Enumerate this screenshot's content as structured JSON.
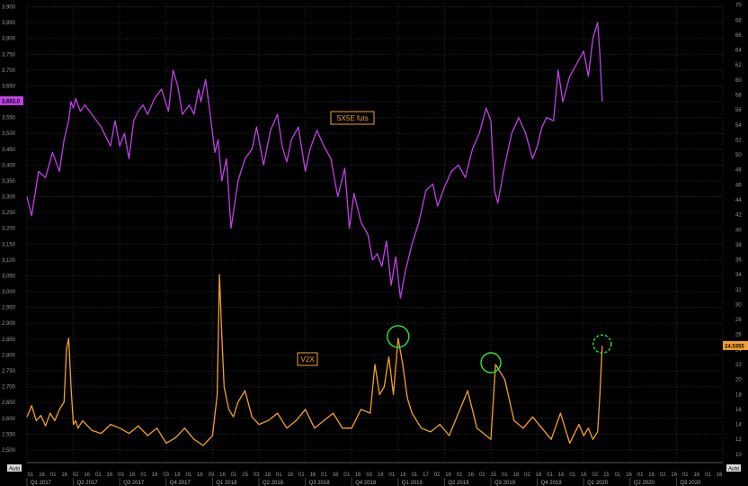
{
  "chart_data": {
    "type": "line",
    "corner_left": "Auto",
    "corner_right": "Auto",
    "quarters": [
      "Q1 2017",
      "Q2 2017",
      "Q3 2017",
      "Q4 2017",
      "Q1 2018",
      "Q2 2018",
      "Q3 2018",
      "Q4 2018",
      "Q1 2019",
      "Q2 2019",
      "Q3 2019",
      "Q4 2019",
      "Q1 2020",
      "Q2 2020",
      "Q3 2020"
    ],
    "day_ticks": [
      "01",
      "16",
      "01",
      "16",
      "02",
      "16",
      "01",
      "16",
      "03",
      "16",
      "01",
      "16",
      "03",
      "18",
      "01",
      "16",
      "03",
      "16",
      "01",
      "15",
      "03",
      "18",
      "01",
      "16",
      "01",
      "16",
      "01",
      "16",
      "01",
      "16",
      "03",
      "18",
      "01",
      "16",
      "01",
      "17",
      "02",
      "16",
      "01",
      "16",
      "01",
      "15",
      "01",
      "18",
      "02",
      "16",
      "01",
      "16",
      "01",
      "16",
      "02",
      "15",
      "01",
      "16",
      "01",
      "16",
      "02",
      "16",
      "01",
      "16",
      "01",
      "16"
    ],
    "left_axis": {
      "range": [
        2460,
        3910
      ],
      "ticks": [
        2500,
        2550,
        2600,
        2650,
        2700,
        2750,
        2800,
        2850,
        2900,
        2950,
        3000,
        3050,
        3100,
        3150,
        3200,
        3250,
        3300,
        3350,
        3400,
        3450,
        3500,
        3550,
        3600,
        3650,
        3700,
        3750,
        3800,
        3850,
        3900
      ],
      "tick_labels": [
        "2,500",
        "2,550",
        "2,600",
        "2,650",
        "2,700",
        "2,750",
        "2,800",
        "2,850",
        "2,900",
        "2,950",
        "3,000",
        "3,050",
        "3,100",
        "3,150",
        "3,200",
        "3,250",
        "3,300",
        "3,350",
        "3,400",
        "3,450",
        "3,500",
        "3,550",
        "3,600",
        "3,650",
        "3,700",
        "3,750",
        "3,800",
        "3,850",
        "3,900"
      ]
    },
    "right_axis": {
      "range": [
        8.9,
        70.2
      ],
      "ticks": [
        10,
        12,
        14,
        16,
        18,
        20,
        22,
        24,
        26,
        28,
        30,
        32,
        34,
        36,
        38,
        40,
        42,
        44,
        46,
        48,
        50,
        52,
        54,
        56,
        58,
        60,
        62,
        64,
        66,
        68,
        70
      ],
      "tick_labels": [
        "10",
        "12",
        "14",
        "16",
        "18",
        "20",
        "22",
        "24",
        "26",
        "28",
        "30",
        "32",
        "34",
        "36",
        "38",
        "40",
        "42",
        "44",
        "46",
        "48",
        "50",
        "52",
        "54",
        "56",
        "58",
        "60",
        "62",
        "64",
        "66",
        "68",
        "70"
      ]
    },
    "x_range": [
      0,
      15
    ],
    "series": [
      {
        "name": "SX5E futs",
        "axis": "left",
        "color": "#c040e8",
        "last_value_label": "3,603.0",
        "x": [
          0,
          0.1,
          0.25,
          0.4,
          0.55,
          0.7,
          0.8,
          0.9,
          0.95,
          1.0,
          1.05,
          1.15,
          1.25,
          1.4,
          1.6,
          1.8,
          1.9,
          2.0,
          2.1,
          2.2,
          2.3,
          2.4,
          2.5,
          2.6,
          2.75,
          2.9,
          3.05,
          3.15,
          3.25,
          3.35,
          3.5,
          3.6,
          3.7,
          3.75,
          3.85,
          3.95,
          4.05,
          4.12,
          4.2,
          4.3,
          4.4,
          4.55,
          4.7,
          4.85,
          4.95,
          5.1,
          5.25,
          5.4,
          5.5,
          5.6,
          5.7,
          5.85,
          6.0,
          6.1,
          6.25,
          6.4,
          6.55,
          6.7,
          6.85,
          6.95,
          7.05,
          7.2,
          7.35,
          7.45,
          7.55,
          7.65,
          7.75,
          7.85,
          7.95,
          8.05,
          8.15,
          8.3,
          8.45,
          8.6,
          8.75,
          8.85,
          9.0,
          9.15,
          9.3,
          9.45,
          9.6,
          9.75,
          9.9,
          10.0,
          10.08,
          10.15,
          10.3,
          10.45,
          10.6,
          10.75,
          10.9,
          11.0,
          11.1,
          11.2,
          11.35,
          11.45,
          11.55,
          11.7,
          11.85,
          12.0,
          12.1,
          12.2,
          12.3,
          12.35,
          12.4
        ],
        "y": [
          3300,
          3240,
          3380,
          3360,
          3440,
          3380,
          3480,
          3540,
          3600,
          3580,
          3610,
          3570,
          3590,
          3560,
          3520,
          3460,
          3540,
          3460,
          3500,
          3420,
          3540,
          3570,
          3590,
          3560,
          3610,
          3640,
          3570,
          3700,
          3650,
          3560,
          3590,
          3560,
          3640,
          3600,
          3670,
          3560,
          3440,
          3480,
          3350,
          3420,
          3200,
          3350,
          3420,
          3450,
          3520,
          3400,
          3510,
          3560,
          3460,
          3410,
          3480,
          3520,
          3380,
          3450,
          3510,
          3460,
          3420,
          3300,
          3390,
          3200,
          3310,
          3220,
          3180,
          3100,
          3120,
          3080,
          3160,
          3020,
          3110,
          2980,
          3060,
          3150,
          3220,
          3320,
          3340,
          3270,
          3330,
          3380,
          3400,
          3360,
          3450,
          3500,
          3580,
          3540,
          3320,
          3280,
          3400,
          3500,
          3550,
          3500,
          3420,
          3460,
          3520,
          3550,
          3540,
          3700,
          3600,
          3680,
          3720,
          3760,
          3680,
          3800,
          3850,
          3750,
          3600
        ]
      },
      {
        "name": "V2X",
        "axis": "right",
        "color": "#f5a02a",
        "last_value_label": "24.5355",
        "x": [
          0,
          0.1,
          0.2,
          0.3,
          0.4,
          0.5,
          0.6,
          0.7,
          0.8,
          0.85,
          0.9,
          0.95,
          1.0,
          1.05,
          1.1,
          1.2,
          1.4,
          1.6,
          1.8,
          2.0,
          2.2,
          2.4,
          2.6,
          2.8,
          3.0,
          3.2,
          3.4,
          3.6,
          3.8,
          4.0,
          4.1,
          4.15,
          4.2,
          4.25,
          4.35,
          4.45,
          4.55,
          4.7,
          4.85,
          5.0,
          5.2,
          5.4,
          5.6,
          5.8,
          6.0,
          6.2,
          6.4,
          6.6,
          6.8,
          7.0,
          7.2,
          7.4,
          7.5,
          7.6,
          7.7,
          7.8,
          7.9,
          8.0,
          8.1,
          8.2,
          8.3,
          8.5,
          8.7,
          8.9,
          9.1,
          9.3,
          9.5,
          9.7,
          9.9,
          10.0,
          10.1,
          10.2,
          10.3,
          10.5,
          10.7,
          10.9,
          11.1,
          11.3,
          11.5,
          11.7,
          11.9,
          12.0,
          12.1,
          12.2,
          12.3,
          12.35,
          12.4
        ],
        "y": [
          15,
          16.5,
          14.5,
          15.2,
          13.8,
          15.5,
          14.5,
          16,
          17,
          24,
          25.5,
          19,
          14,
          14.5,
          13.5,
          14.5,
          13.2,
          12.8,
          14,
          13.5,
          12.8,
          13.8,
          12.5,
          13.5,
          11.5,
          12.2,
          13.5,
          12,
          11.2,
          12.5,
          18,
          34,
          26,
          19,
          16,
          15,
          17,
          18.5,
          15,
          14,
          14.5,
          15.5,
          13.5,
          14.5,
          16,
          13.5,
          14.5,
          15.5,
          13.5,
          13.5,
          16,
          15.5,
          22,
          18,
          19,
          23,
          18,
          25.5,
          22,
          17.5,
          15.5,
          13.5,
          13,
          14,
          12.5,
          15.5,
          18.5,
          13.5,
          12.5,
          12,
          22,
          21,
          20,
          14.5,
          13.5,
          15,
          13.5,
          12,
          15.5,
          11.5,
          14,
          12.5,
          13.5,
          12,
          13,
          18,
          24.5
        ]
      }
    ],
    "annotations": [
      "SX5E futs",
      "V2X"
    ]
  }
}
